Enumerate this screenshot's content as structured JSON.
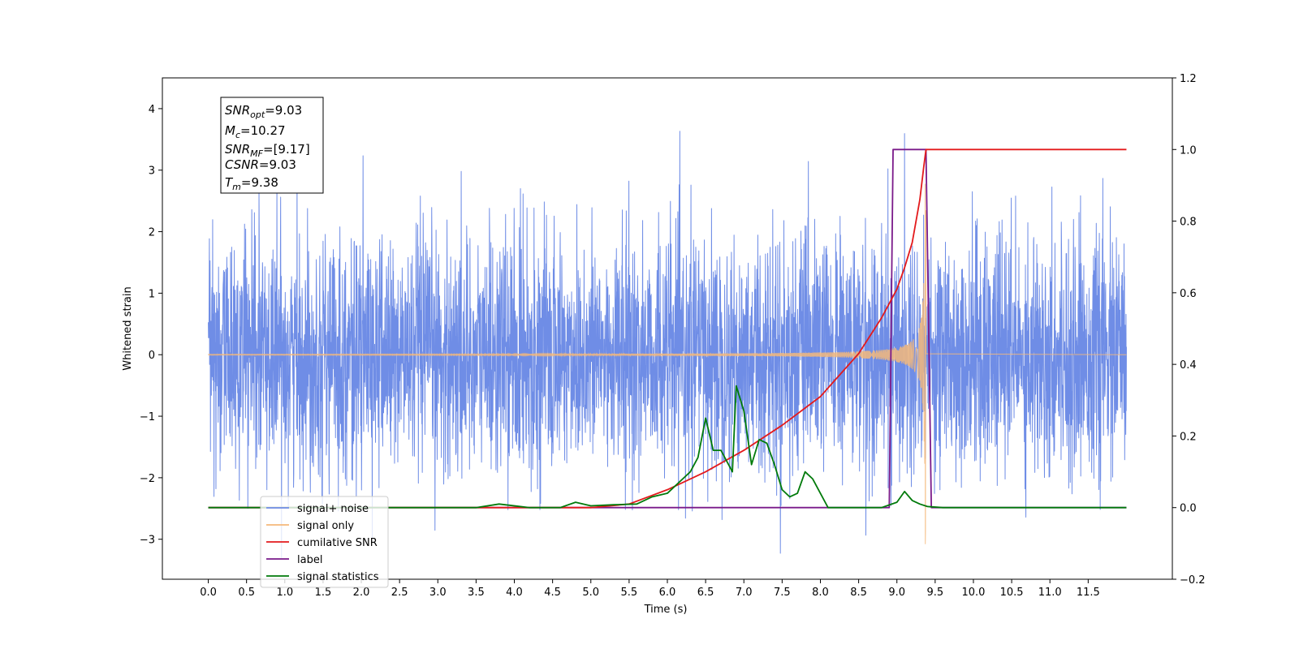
{
  "chart_data": {
    "type": "line",
    "xlabel": "Time (s)",
    "ylabel_left": "Whitened strain",
    "ylabel_right": "",
    "xlim": [
      -0.6,
      12.6
    ],
    "ylim_left": [
      -3.65,
      4.5
    ],
    "ylim_right": [
      -0.2,
      1.2
    ],
    "x_ticks": [
      "0.0",
      "0.5",
      "1.0",
      "1.5",
      "2.0",
      "2.5",
      "3.0",
      "3.5",
      "4.0",
      "4.5",
      "5.0",
      "5.5",
      "6.0",
      "6.5",
      "7.0",
      "7.5",
      "8.0",
      "8.5",
      "9.0",
      "9.5",
      "10.0",
      "10.5",
      "11.0",
      "11.5"
    ],
    "y_left_ticks": [
      "−3",
      "−2",
      "−1",
      "0",
      "1",
      "2",
      "3",
      "4"
    ],
    "y_right_ticks": [
      "−0.2",
      "0.0",
      "0.2",
      "0.4",
      "0.6",
      "0.8",
      "1.0",
      "1.2"
    ],
    "grid": false,
    "legend_position": "bottom-left",
    "annotations": [
      {
        "base": "SNR",
        "sub": "opt",
        "value": "=9.03"
      },
      {
        "base": "M",
        "sub": "c",
        "value": "=10.27"
      },
      {
        "base": "SNR",
        "sub": "MF",
        "value": "=[9.17]"
      },
      {
        "base": "CSNR",
        "sub": "",
        "value": "=9.03"
      },
      {
        "base": "T",
        "sub": "m",
        "value": "=9.38"
      }
    ],
    "series": [
      {
        "name": "signal+ noise",
        "axis": "left",
        "color": "#6f8de6",
        "kind": "gaussian noise",
        "x_range": [
          0.0,
          12.0
        ],
        "amplitude_range": [
          -3.3,
          4.1
        ]
      },
      {
        "name": "signal only",
        "axis": "left",
        "color": "#f5b87a",
        "kind": "chirp",
        "x_range": [
          0.0,
          9.4
        ],
        "peak_time": 9.38,
        "peak_amplitude": 3.2
      },
      {
        "name": "cumilative SNR",
        "axis": "right",
        "color": "#e31a1c",
        "x": [
          0.0,
          5.0,
          5.5,
          6.0,
          6.5,
          7.0,
          7.5,
          8.0,
          8.5,
          8.8,
          9.0,
          9.1,
          9.2,
          9.3,
          9.35,
          9.38,
          12.0
        ],
        "y": [
          0.0,
          0.0,
          0.01,
          0.05,
          0.1,
          0.16,
          0.23,
          0.31,
          0.43,
          0.53,
          0.61,
          0.67,
          0.74,
          0.86,
          0.95,
          1.0,
          1.0
        ]
      },
      {
        "name": "label",
        "axis": "right",
        "color": "#7a1a8a",
        "x": [
          0.0,
          8.9,
          8.95,
          9.38,
          9.45,
          12.0
        ],
        "y": [
          0.0,
          0.0,
          1.0,
          1.0,
          0.0,
          0.0
        ]
      },
      {
        "name": "signal statistics",
        "axis": "right",
        "color": "#007a0a",
        "x": [
          0.0,
          3.5,
          3.8,
          4.2,
          4.6,
          4.8,
          5.0,
          5.3,
          5.6,
          5.8,
          6.0,
          6.2,
          6.3,
          6.4,
          6.5,
          6.6,
          6.7,
          6.85,
          6.9,
          7.0,
          7.1,
          7.2,
          7.3,
          7.4,
          7.5,
          7.6,
          7.7,
          7.8,
          7.9,
          8.0,
          8.1,
          8.5,
          8.8,
          9.0,
          9.1,
          9.2,
          9.3,
          9.4,
          9.6,
          12.0
        ],
        "y": [
          0.0,
          0.0,
          0.01,
          0.0,
          0.0,
          0.015,
          0.005,
          0.008,
          0.01,
          0.03,
          0.04,
          0.08,
          0.1,
          0.14,
          0.25,
          0.16,
          0.16,
          0.1,
          0.34,
          0.27,
          0.12,
          0.19,
          0.18,
          0.12,
          0.05,
          0.03,
          0.04,
          0.1,
          0.08,
          0.04,
          0.0,
          0.0,
          0.0,
          0.015,
          0.045,
          0.02,
          0.01,
          0.003,
          0.0,
          0.0
        ]
      }
    ],
    "legend_items": [
      {
        "label": "signal+ noise",
        "color": "#6f8de6"
      },
      {
        "label": "signal only",
        "color": "#f5b87a"
      },
      {
        "label": "cumilative SNR",
        "color": "#e31a1c"
      },
      {
        "label": "label",
        "color": "#7a1a8a"
      },
      {
        "label": "signal statistics",
        "color": "#007a0a"
      }
    ]
  }
}
